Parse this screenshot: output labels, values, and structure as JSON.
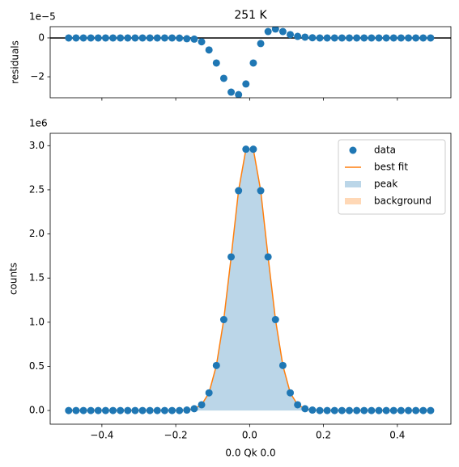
{
  "chart_data": [
    {
      "type": "scatter",
      "title": "251 K",
      "y_label": "residuals",
      "y_offset_label": "1e−5",
      "x": [
        -0.49,
        -0.47,
        -0.45,
        -0.43,
        -0.41,
        -0.39,
        -0.37,
        -0.35,
        -0.33,
        -0.31,
        -0.29,
        -0.27,
        -0.25,
        -0.23,
        -0.21,
        -0.19,
        -0.17,
        -0.15,
        -0.13,
        -0.11,
        -0.09,
        -0.07,
        -0.05,
        -0.03,
        -0.01,
        0.01,
        0.03,
        0.05,
        0.07,
        0.09,
        0.11,
        0.13,
        0.15,
        0.17,
        0.19,
        0.21,
        0.23,
        0.25,
        0.27,
        0.29,
        0.31,
        0.33,
        0.35,
        0.37,
        0.39,
        0.41,
        0.43,
        0.45,
        0.47,
        0.49
      ],
      "values": [
        0,
        0,
        0,
        0,
        0,
        0,
        0,
        0,
        0,
        0,
        0,
        0,
        0,
        0,
        0,
        -0.01,
        -0.04,
        -0.06,
        -0.2,
        -0.62,
        -1.29,
        -2.08,
        -2.79,
        -2.92,
        -2.37,
        -1.29,
        -0.29,
        0.33,
        0.46,
        0.33,
        0.17,
        0.08,
        0.04,
        0.01,
        0,
        0,
        0,
        0,
        0,
        0,
        0,
        0,
        0,
        0,
        0,
        0,
        0,
        0,
        0,
        0
      ],
      "color": "#1f77b4",
      "zero_line": true,
      "xlim": [
        -0.54,
        0.545
      ],
      "xticks": [
        -0.4,
        -0.2,
        0,
        0.2,
        0.4
      ],
      "ylim": [
        -3.08,
        0.58
      ],
      "yticks": [
        {
          "value": -2,
          "label": "−2"
        },
        0
      ]
    },
    {
      "type": "combo",
      "x_label": "0.0 Qk 0.0",
      "y_label": "counts",
      "y_offset_label": "1e6",
      "x": [
        -0.49,
        -0.47,
        -0.45,
        -0.43,
        -0.41,
        -0.39,
        -0.37,
        -0.35,
        -0.33,
        -0.31,
        -0.29,
        -0.27,
        -0.25,
        -0.23,
        -0.21,
        -0.19,
        -0.17,
        -0.15,
        -0.13,
        -0.11,
        -0.09,
        -0.07,
        -0.05,
        -0.03,
        -0.01,
        0.01,
        0.03,
        0.05,
        0.07,
        0.09,
        0.11,
        0.13,
        0.15,
        0.17,
        0.19,
        0.21,
        0.23,
        0.25,
        0.27,
        0.29,
        0.31,
        0.33,
        0.35,
        0.37,
        0.39,
        0.41,
        0.43,
        0.45,
        0.47,
        0.49
      ],
      "series": [
        {
          "name": "data",
          "style": "markers",
          "color": "#1f77b4",
          "values": [
            0,
            0,
            0,
            0,
            0,
            0,
            0,
            0,
            0,
            0,
            0,
            0,
            0,
            0,
            0,
            0,
            0.005,
            0.02,
            0.065,
            0.2,
            0.51,
            1.03,
            1.74,
            2.49,
            2.96,
            2.96,
            2.49,
            1.74,
            1.03,
            0.51,
            0.2,
            0.065,
            0.02,
            0.005,
            0,
            0,
            0,
            0,
            0,
            0,
            0,
            0,
            0,
            0,
            0,
            0,
            0,
            0,
            0,
            0
          ]
        },
        {
          "name": "best fit",
          "style": "line",
          "color": "#ff7f0e",
          "values": [
            0,
            0,
            0,
            0,
            0,
            0,
            0,
            0,
            0,
            0,
            0,
            0,
            0,
            0,
            0,
            0,
            0.005,
            0.02,
            0.065,
            0.2,
            0.51,
            1.03,
            1.74,
            2.49,
            2.96,
            2.96,
            2.49,
            1.74,
            1.03,
            0.51,
            0.2,
            0.065,
            0.02,
            0.005,
            0,
            0,
            0,
            0,
            0,
            0,
            0,
            0,
            0,
            0,
            0,
            0,
            0,
            0,
            0,
            0
          ]
        },
        {
          "name": "peak",
          "style": "fill",
          "color": "#1f77b4",
          "values": [
            0,
            0,
            0,
            0,
            0,
            0,
            0,
            0,
            0,
            0,
            0,
            0,
            0,
            0,
            0,
            0,
            0.005,
            0.02,
            0.065,
            0.2,
            0.51,
            1.03,
            1.74,
            2.49,
            2.96,
            2.96,
            2.49,
            1.74,
            1.03,
            0.51,
            0.2,
            0.065,
            0.02,
            0.005,
            0,
            0,
            0,
            0,
            0,
            0,
            0,
            0,
            0,
            0,
            0,
            0,
            0,
            0,
            0,
            0
          ]
        },
        {
          "name": "background",
          "style": "fill",
          "color": "#ff7f0e",
          "values": [
            0,
            0,
            0,
            0,
            0,
            0,
            0,
            0,
            0,
            0,
            0,
            0,
            0,
            0,
            0,
            0,
            0,
            0,
            0,
            0,
            0,
            0,
            0,
            0,
            0,
            0,
            0,
            0,
            0,
            0,
            0,
            0,
            0,
            0,
            0,
            0,
            0,
            0,
            0,
            0,
            0,
            0,
            0,
            0,
            0,
            0,
            0,
            0,
            0,
            0
          ]
        }
      ],
      "legend": "upper right",
      "xlim": [
        -0.54,
        0.545
      ],
      "xticks": [
        {
          "value": -0.4,
          "label": "−0.4"
        },
        {
          "value": -0.2,
          "label": "−0.2"
        },
        {
          "value": 0,
          "label": "0.0"
        },
        0.2,
        0.4
      ],
      "ylim": [
        -0.155,
        3.14
      ],
      "yticks": [
        {
          "value": 0,
          "label": "0.0"
        },
        0.5,
        {
          "value": 1,
          "label": "1.0"
        },
        1.5,
        {
          "value": 2,
          "label": "2.0"
        },
        2.5,
        {
          "value": 3,
          "label": "3.0"
        }
      ]
    }
  ]
}
